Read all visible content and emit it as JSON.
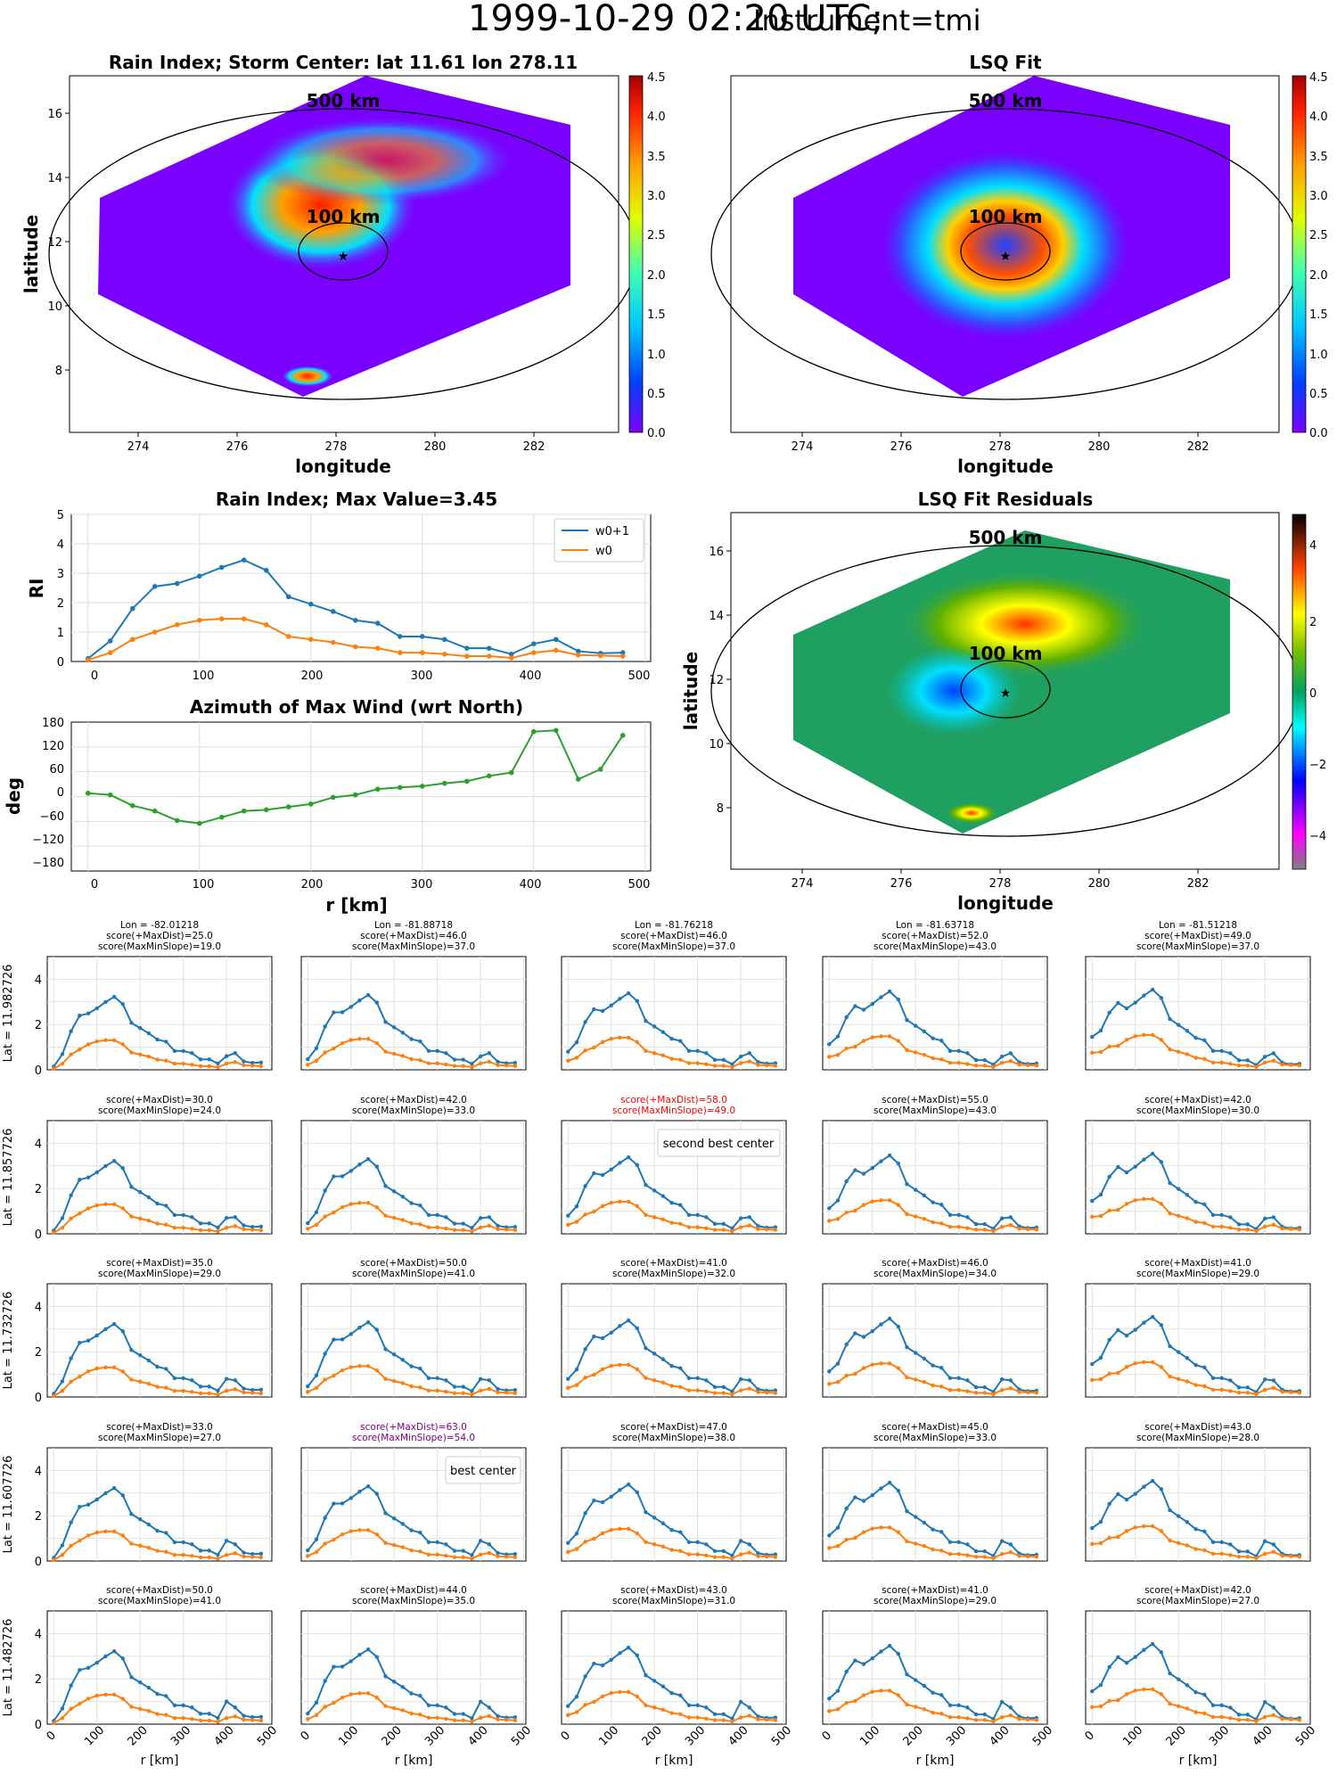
{
  "suptitle": {
    "main": "1999-10-29 02:20 UTC;",
    "instrument": "Instrument=tmi"
  },
  "maps": {
    "rain_index": {
      "title": "Rain Index; Storm Center: lat 11.61 lon 278.11",
      "xlabel": "longitude",
      "ylabel": "latitude",
      "xticks": [
        "274",
        "276",
        "278",
        "280",
        "282"
      ],
      "yticks": [
        "8",
        "10",
        "12",
        "14",
        "16"
      ],
      "ring_labels": [
        "500 km",
        "100 km"
      ],
      "cbar_ticks": [
        "0.0",
        "0.5",
        "1.0",
        "1.5",
        "2.0",
        "2.5",
        "3.0",
        "3.5",
        "4.0",
        "4.5"
      ],
      "colormap": [
        "#7a00ff",
        "#0040ff",
        "#00c8ff",
        "#40ffb0",
        "#e0ff00",
        "#ffa000",
        "#ff2000",
        "#a00000"
      ]
    },
    "lsq_fit": {
      "title": "LSQ Fit",
      "xlabel": "longitude",
      "xticks": [
        "274",
        "276",
        "278",
        "280",
        "282"
      ],
      "ring_labels": [
        "500 km",
        "100 km"
      ],
      "cbar_ticks": [
        "0.0",
        "0.5",
        "1.0",
        "1.5",
        "2.0",
        "2.5",
        "3.0",
        "3.5",
        "4.0",
        "4.5"
      ]
    },
    "residuals": {
      "title": "LSQ Fit Residuals",
      "xlabel": "longitude",
      "ylabel": "latitude",
      "xticks": [
        "274",
        "276",
        "278",
        "280",
        "282"
      ],
      "yticks": [
        "8",
        "10",
        "12",
        "14",
        "16"
      ],
      "ring_labels": [
        "500 km",
        "100 km"
      ],
      "cbar_ticks": [
        "4",
        "2",
        "0",
        "−2",
        "−4"
      ],
      "colormap": [
        "#808080",
        "#ff00ff",
        "#0000ff",
        "#00ffff",
        "#00a060",
        "#a0c000",
        "#ffff00",
        "#ff4000",
        "#000000"
      ]
    }
  },
  "line_axes": {
    "ri": {
      "ylabel": "RI",
      "yticks": [
        "0",
        "1",
        "2",
        "3",
        "4",
        "5"
      ],
      "xticks": [
        "0",
        "100",
        "200",
        "300",
        "400",
        "500"
      ]
    },
    "az": {
      "ylabel": "deg",
      "xlabel": "r [km]",
      "yticks": [
        "180",
        "120",
        "60",
        "0",
        "−60",
        "−120",
        "−180"
      ],
      "xticks": [
        "0",
        "100",
        "200",
        "300",
        "400",
        "500"
      ]
    }
  },
  "grid": {
    "xlabel": "r [km]",
    "xticks": [
      "0",
      "100",
      "200",
      "300",
      "400",
      "500"
    ],
    "yticks": [
      "0",
      "2",
      "4"
    ],
    "row_labels": [
      "Lat = 11.982726",
      "Lat = 11.857726",
      "Lat = 11.732726",
      "Lat = 11.607726",
      "Lat = 11.482726"
    ],
    "col_lons": [
      "Lon = -82.01218",
      "Lon = -81.88718",
      "Lon = -81.76218",
      "Lon = -81.63718",
      "Lon = -81.51218"
    ],
    "scores": [
      [
        [
          25,
          19
        ],
        [
          46,
          37
        ],
        [
          46,
          37
        ],
        [
          52,
          43
        ],
        [
          49,
          37
        ]
      ],
      [
        [
          30,
          24
        ],
        [
          42,
          33
        ],
        [
          58,
          49
        ],
        [
          55,
          43
        ],
        [
          42,
          30
        ]
      ],
      [
        [
          35,
          29
        ],
        [
          50,
          41
        ],
        [
          41,
          32
        ],
        [
          46,
          34
        ],
        [
          41,
          29
        ]
      ],
      [
        [
          33,
          27
        ],
        [
          63,
          54
        ],
        [
          47,
          38
        ],
        [
          45,
          33
        ],
        [
          43,
          28
        ]
      ],
      [
        [
          50,
          41
        ],
        [
          44,
          35
        ],
        [
          43,
          31
        ],
        [
          41,
          29
        ],
        [
          42,
          27
        ]
      ]
    ],
    "highlight": {
      "second_best": "second best center",
      "best": "best center"
    },
    "score_labels": {
      "maxdist": "score(+MaxDist)=",
      "slope": "score(MaxMinSlope)="
    }
  },
  "colors": {
    "w0p1": "#1f77b4",
    "w0": "#ff7f0e",
    "azimuth": "#2ca02c",
    "second_best": "#ff0000",
    "best": "#800080"
  },
  "chart_data": [
    {
      "type": "line",
      "title": "Rain Index; Max Value=3.45",
      "xlabel": "",
      "ylabel": "RI",
      "xlim": [
        -15,
        505
      ],
      "ylim": [
        0,
        5
      ],
      "legend": "top-right",
      "grid": true,
      "x": [
        0,
        20,
        40,
        60,
        80,
        100,
        120,
        140,
        160,
        180,
        200,
        220,
        240,
        260,
        280,
        300,
        320,
        340,
        360,
        380,
        400,
        420,
        440,
        460,
        480
      ],
      "series": [
        {
          "name": "w0+1",
          "values": [
            0.1,
            0.7,
            1.8,
            2.55,
            2.65,
            2.9,
            3.2,
            3.45,
            3.1,
            2.2,
            1.95,
            1.7,
            1.4,
            1.3,
            0.85,
            0.85,
            0.75,
            0.45,
            0.45,
            0.25,
            0.6,
            0.75,
            0.35,
            0.28,
            0.3
          ]
        },
        {
          "name": "w0",
          "values": [
            0.05,
            0.3,
            0.75,
            1.0,
            1.25,
            1.4,
            1.45,
            1.45,
            1.25,
            0.85,
            0.75,
            0.65,
            0.5,
            0.45,
            0.3,
            0.3,
            0.25,
            0.18,
            0.18,
            0.12,
            0.3,
            0.38,
            0.22,
            0.2,
            0.18
          ]
        }
      ]
    },
    {
      "type": "line",
      "title": "Azimuth of Max Wind (wrt North)",
      "xlabel": "r [km]",
      "ylabel": "deg",
      "xlim": [
        -15,
        505
      ],
      "ylim": [
        -180,
        180
      ],
      "grid": true,
      "x": [
        0,
        20,
        40,
        60,
        80,
        100,
        120,
        140,
        160,
        180,
        200,
        220,
        240,
        260,
        280,
        300,
        320,
        340,
        360,
        380,
        400,
        420,
        440,
        460,
        480
      ],
      "series": [
        {
          "values": [
            8,
            4,
            -22,
            -35,
            -58,
            -65,
            -50,
            -35,
            -32,
            -25,
            -18,
            -2,
            4,
            18,
            22,
            25,
            32,
            37,
            50,
            58,
            157,
            160,
            42,
            66,
            148
          ]
        }
      ]
    }
  ]
}
